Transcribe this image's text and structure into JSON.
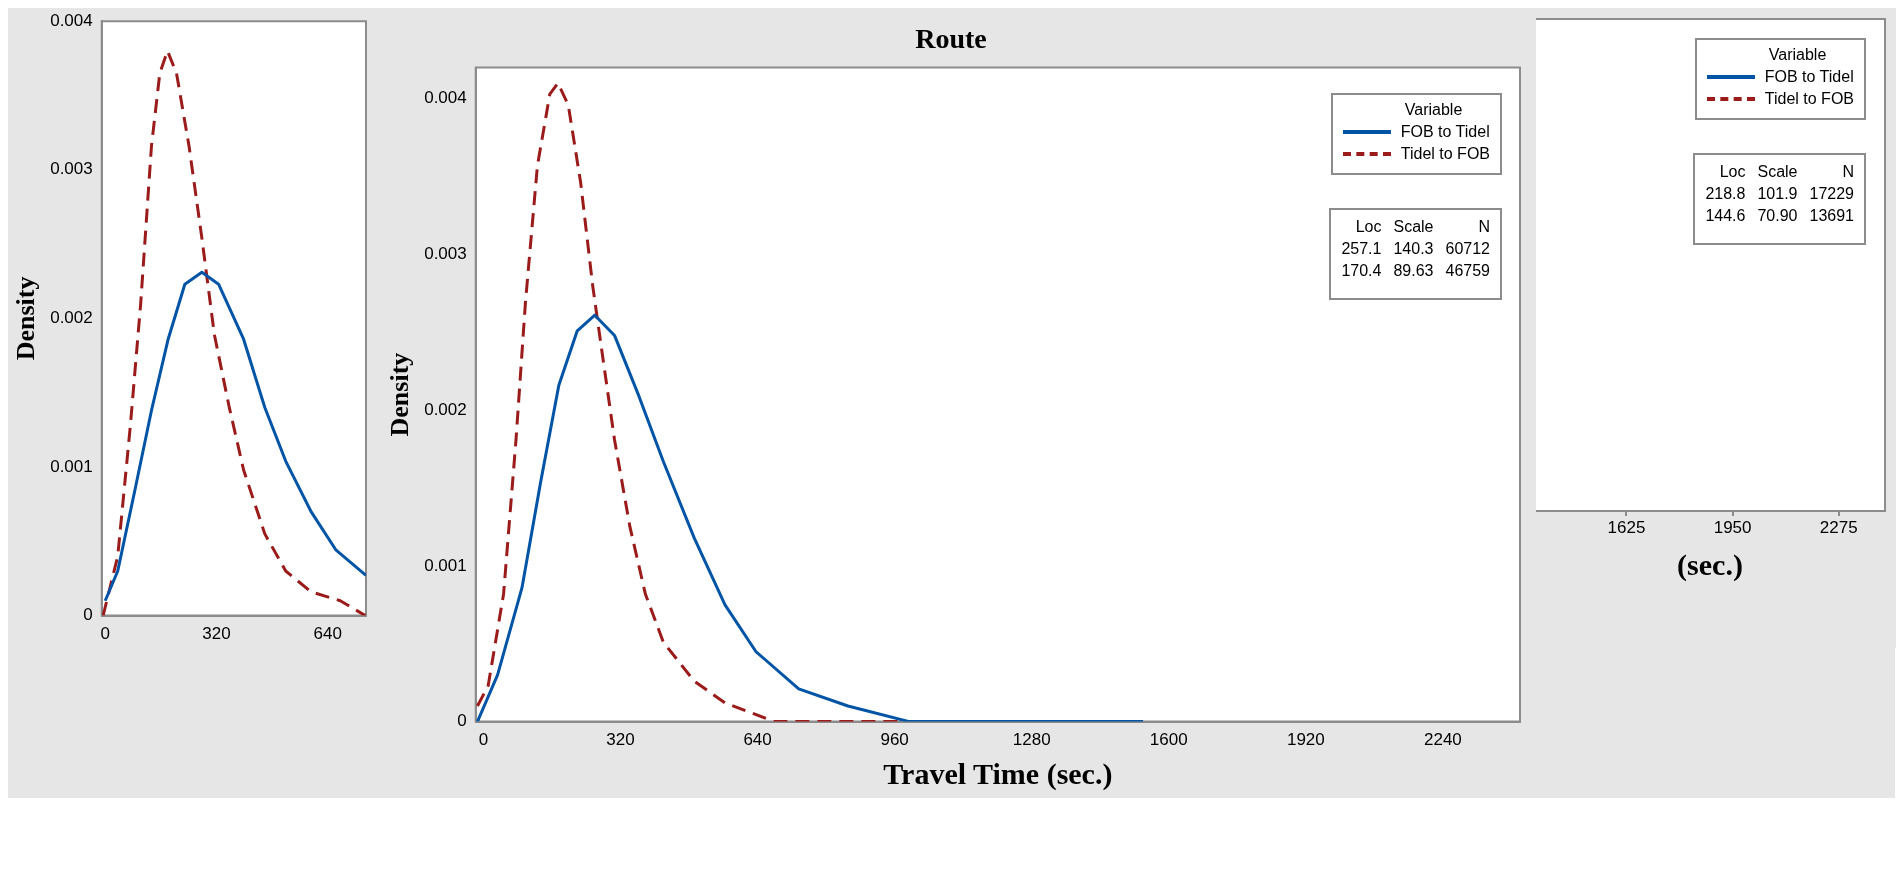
{
  "chart_data": [
    {
      "type": "line",
      "ylabel": "Density",
      "xlim": [
        -10,
        750
      ],
      "xticks": [
        0,
        320,
        640
      ],
      "ylim": [
        0,
        0.004
      ],
      "yticks": [
        0,
        0.001,
        0.002,
        0.003,
        0.004
      ],
      "grid": false,
      "legend": false,
      "marker": "none",
      "series": [
        {
          "color": "#0054a6",
          "line_style": "solid",
          "x": [
            0,
            36,
            85,
            133,
            181,
            229,
            278,
            326,
            398,
            459,
            519,
            592,
            664,
            750
          ],
          "values": [
            0.0001,
            0.0003,
            0.00084,
            0.00138,
            0.00186,
            0.00223,
            0.00231,
            0.00223,
            0.00186,
            0.0014,
            0.00104,
            0.0007,
            0.00044,
            0.00027
          ]
        },
        {
          "color": "#9b1b1b",
          "line_style": "dashed",
          "x": [
            -6,
            36,
            72,
            102,
            133,
            157,
            179,
            205,
            241,
            278,
            314,
            356,
            398,
            459,
            519,
            592,
            676,
            748
          ],
          "values": [
            0,
            0.0004,
            0.00127,
            0.0021,
            0.00316,
            0.00365,
            0.0038,
            0.00365,
            0.00316,
            0.00254,
            0.00189,
            0.00141,
            0.00098,
            0.00055,
            0.0003,
            0.00016,
            0.0001,
            0
          ]
        }
      ]
    },
    {
      "type": "line",
      "title": "Route",
      "xlabel": "Travel Time (sec.)",
      "ylabel": "Density",
      "legend_title": "Variable",
      "xlim": [
        -18,
        2420
      ],
      "xticks": [
        0,
        320,
        640,
        960,
        1280,
        1600,
        1920,
        2240
      ],
      "ylim": [
        0,
        0.0042
      ],
      "yticks": [
        0,
        0.001,
        0.002,
        0.003,
        0.004
      ],
      "grid": false,
      "legend": "top right",
      "marker": "none",
      "annotations": [
        "Loc Scale N",
        "257.1 140.3 60712",
        "170.4 89.63 46759"
      ],
      "series": [
        {
          "name": "FOB to Tidel",
          "color": "#0054a6",
          "line_style": "solid",
          "x": [
            -14,
            33,
            90,
            133,
            176,
            219,
            260,
            306,
            363,
            420,
            492,
            564,
            636,
            736,
            851,
            994,
            1253,
            1540
          ],
          "values": [
            0,
            0.0003,
            0.00086,
            0.00153,
            0.00216,
            0.00251,
            0.00261,
            0.00248,
            0.00209,
            0.00167,
            0.00118,
            0.00075,
            0.00045,
            0.00021,
            0.0001,
            0,
            0,
            0
          ]
        },
        {
          "name": "Tidel to FOB",
          "color": "#9b1b1b",
          "line_style": "dashed",
          "x": [
            -14,
            11,
            47,
            76,
            98,
            126,
            155,
            174,
            198,
            227,
            255,
            277,
            306,
            342,
            378,
            420,
            492,
            564,
            679,
            851,
            980
          ],
          "values": [
            0.0001,
            0.00023,
            0.00082,
            0.00181,
            0.00269,
            0.00357,
            0.00403,
            0.0041,
            0.00396,
            0.00346,
            0.0028,
            0.00237,
            0.00181,
            0.00125,
            0.00082,
            0.00051,
            0.00026,
            0.00012,
            0,
            0,
            0
          ]
        }
      ]
    },
    {
      "type": "other",
      "xlabel": "(sec.)",
      "legend_title": "Variable",
      "categories": [
        "1625",
        "1950",
        "2275"
      ],
      "legend": "top right",
      "annotations": [
        "Loc Scale N",
        "218.8 101.9 17229",
        "144.6 70.90 13691"
      ],
      "series": [
        {
          "name": "FOB to Tidel",
          "color": "#0054a6",
          "line_style": "solid",
          "values": [
            null,
            null,
            null
          ]
        },
        {
          "name": "Tidel to FOB",
          "color": "#9b1b1b",
          "line_style": "dashed",
          "values": [
            null,
            null,
            null
          ]
        }
      ]
    }
  ]
}
